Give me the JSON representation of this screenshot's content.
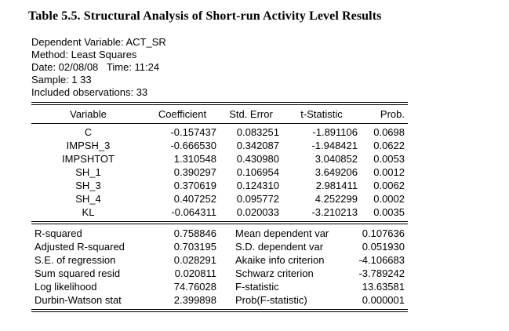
{
  "title": "Table 5.5. Structural Analysis of Short-run Activity Level Results",
  "info": {
    "lines": [
      "Dependent Variable: ACT_SR",
      "Method: Least Squares",
      "Date: 02/08/08   Time: 11:24",
      "Sample: 1 33",
      "Included observations: 33"
    ]
  },
  "table": {
    "headers": [
      "Variable",
      "Coefficient",
      "Std. Error",
      "t-Statistic",
      "Prob."
    ],
    "rows": [
      [
        "C",
        "-0.157437",
        "0.083251",
        "-1.891106",
        "0.0698"
      ],
      [
        "IMPSH_3",
        "-0.666530",
        "0.342087",
        "-1.948421",
        "0.0622"
      ],
      [
        "IMPSHTOT",
        "1.310548",
        "0.430980",
        "3.040852",
        "0.0053"
      ],
      [
        "SH_1",
        "0.390297",
        "0.106954",
        "3.649206",
        "0.0012"
      ],
      [
        "SH_3",
        "0.370619",
        "0.124310",
        "2.981411",
        "0.0062"
      ],
      [
        "SH_4",
        "0.407252",
        "0.095772",
        "4.252299",
        "0.0002"
      ],
      [
        "KL",
        "-0.064311",
        "0.020033",
        "-3.210213",
        "0.0035"
      ]
    ]
  },
  "stats": {
    "rows": [
      [
        "R-squared",
        "0.758846",
        "Mean dependent var",
        "0.107636"
      ],
      [
        "Adjusted R-squared",
        "0.703195",
        "S.D. dependent var",
        "0.051930"
      ],
      [
        "S.E. of regression",
        "0.028291",
        "Akaike info criterion",
        "-4.106683"
      ],
      [
        "Sum squared resid",
        "0.020811",
        "Schwarz criterion",
        "-3.789242"
      ],
      [
        "Log likelihood",
        "74.76028",
        "F-statistic",
        "13.63581"
      ],
      [
        "Durbin-Watson stat",
        "2.399898",
        "Prob(F-statistic)",
        "0.000001"
      ]
    ]
  }
}
